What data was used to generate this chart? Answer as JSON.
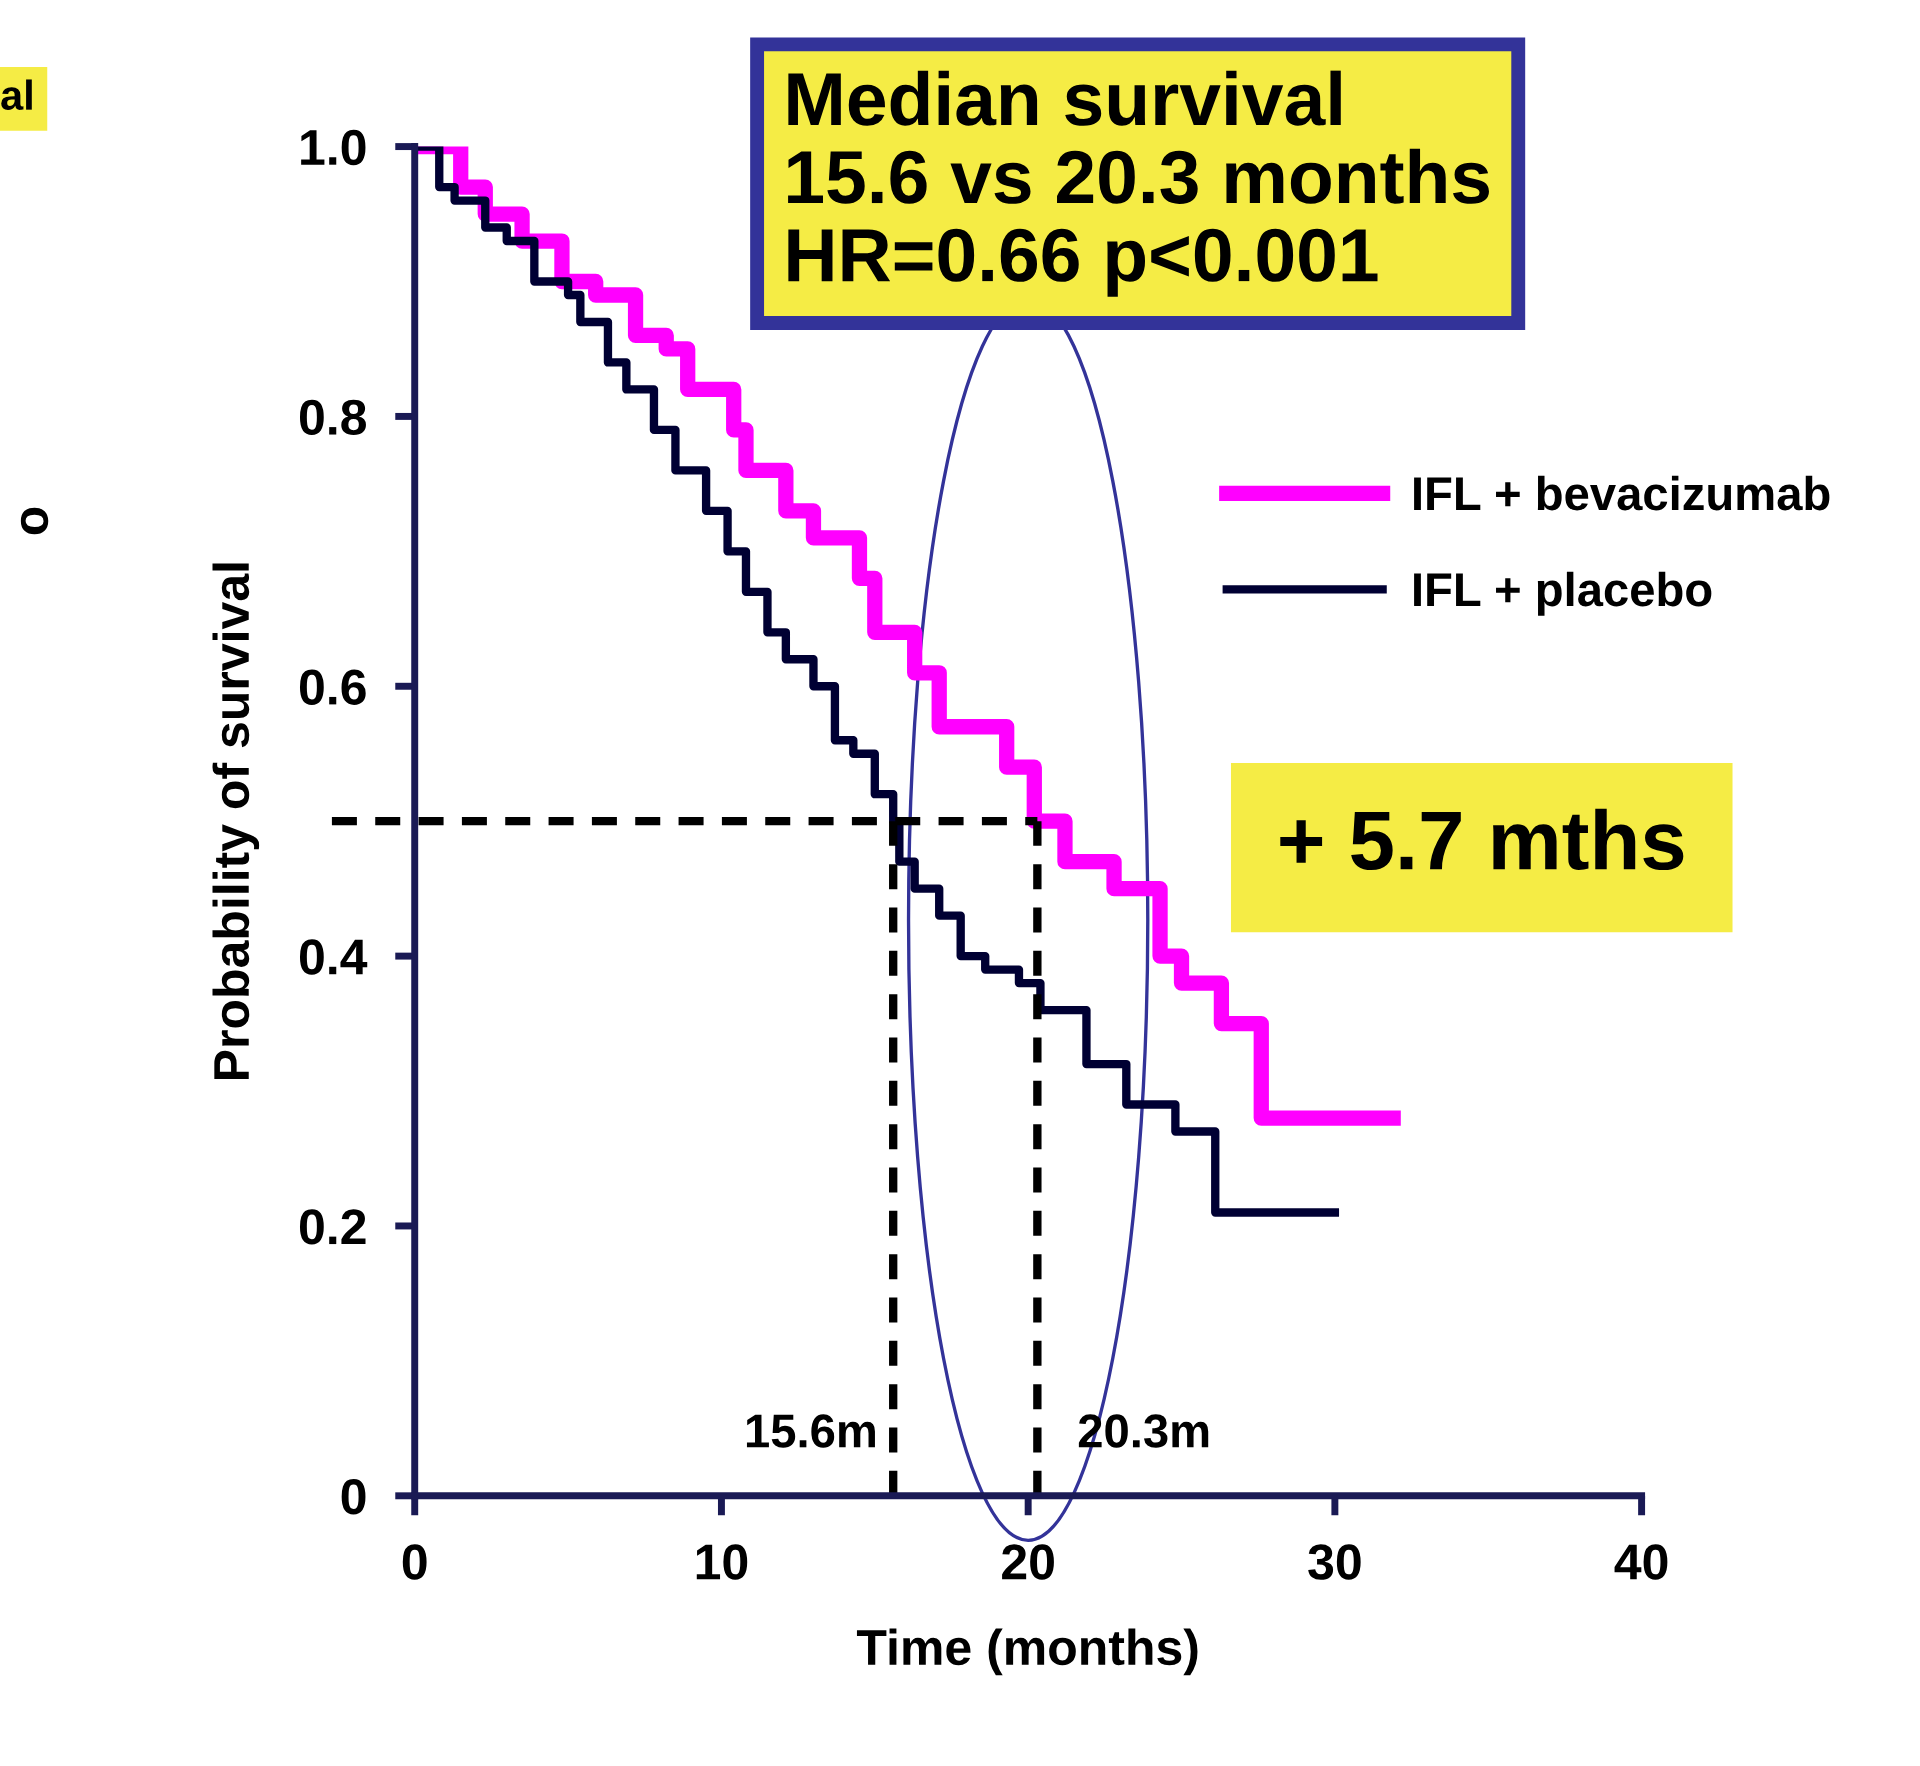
{
  "chart_data": {
    "type": "step",
    "xlabel": "Time (months)",
    "ylabel": "Probability of survival",
    "xlim": [
      0,
      40
    ],
    "xticks": [
      0,
      10,
      20,
      30,
      40
    ],
    "ylim": [
      0,
      1.0
    ],
    "yticks": [
      0,
      {
        "value": 0.2,
        "label": "0.2"
      },
      {
        "value": 0.4,
        "label": "0.4"
      },
      {
        "value": 0.6,
        "label": "0.6"
      },
      {
        "value": 0.8,
        "label": "0.8"
      },
      {
        "value": 1.0,
        "label": "1.0"
      }
    ],
    "grid": false,
    "legend": "top right",
    "line_style": "solid",
    "marker": "none",
    "series": [
      {
        "name": "IFL + bevacizumab",
        "color": "#ff00ff",
        "x": [
          0,
          1.5,
          2.3,
          3.5,
          4.8,
          5.9,
          7.2,
          8.2,
          8.9,
          10.4,
          10.8,
          12.1,
          13.0,
          14.5,
          15.0,
          16.3,
          17.1,
          19.3,
          20.2,
          21.2,
          22.8,
          24.3,
          25.0,
          26.3,
          27.6,
          31.9
        ],
        "values": [
          1.0,
          0.97,
          0.95,
          0.93,
          0.9,
          0.89,
          0.86,
          0.85,
          0.82,
          0.79,
          0.76,
          0.73,
          0.71,
          0.68,
          0.64,
          0.61,
          0.57,
          0.54,
          0.5,
          0.47,
          0.45,
          0.4,
          0.38,
          0.35,
          0.28,
          0.28
        ]
      },
      {
        "name": "IFL + placebo",
        "color": "#000033",
        "x": [
          0,
          0.8,
          1.3,
          2.3,
          3.0,
          3.9,
          5.0,
          5.4,
          6.3,
          6.9,
          7.8,
          8.5,
          9.5,
          10.2,
          10.8,
          11.5,
          12.1,
          13.0,
          13.7,
          14.3,
          15.0,
          15.6,
          15.8,
          16.3,
          17.1,
          17.8,
          18.6,
          19.7,
          20.4,
          21.9,
          23.2,
          24.8,
          26.1,
          30.0
        ],
        "values": [
          1.0,
          0.97,
          0.96,
          0.94,
          0.93,
          0.9,
          0.89,
          0.87,
          0.84,
          0.82,
          0.79,
          0.76,
          0.73,
          0.7,
          0.67,
          0.64,
          0.62,
          0.6,
          0.56,
          0.55,
          0.52,
          0.5,
          0.47,
          0.45,
          0.43,
          0.4,
          0.39,
          0.38,
          0.36,
          0.32,
          0.29,
          0.27,
          0.21,
          0.21
        ]
      }
    ],
    "ref_lines": [
      {
        "axis": "y",
        "value": 0.5,
        "line_style": "dashed",
        "color": "#000000"
      },
      {
        "axis": "x",
        "value": 15.6,
        "label": "15.6m",
        "line_style": "dashed",
        "color": "#000000"
      },
      {
        "axis": "x",
        "value": 20.3,
        "label": "20.3m",
        "line_style": "dashed",
        "color": "#000000"
      }
    ],
    "annotations": [
      "Median survival\n15.6 vs 20.3 months\nHR=0.66 p<0.001",
      "+ 5.7 mths",
      "al",
      "o"
    ]
  }
}
